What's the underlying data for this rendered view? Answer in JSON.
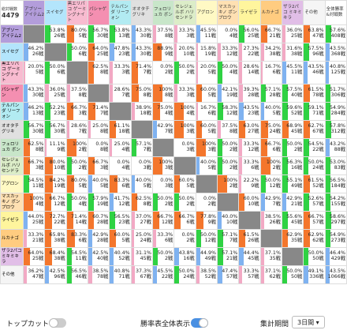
{
  "header": {
    "total_label": "総対戦数",
    "total": "4479"
  },
  "columns": [
    {
      "label": "アブソーアイテム2",
      "color": "#b39ddb"
    },
    {
      "label": "スイセグ",
      "color": "#b3e5fc"
    },
    {
      "label": "黒エリパコ ゲーミングナイト",
      "color": "#f8bbd0"
    },
    {
      "label": "パシャゲン",
      "color": "#f48fb1"
    },
    {
      "label": "テルパンダ リーフォン",
      "color": "#b2ebf2"
    },
    {
      "label": "オオタチグリキ",
      "color": "#e0e0e0"
    },
    {
      "label": "フェロリュカ ボン",
      "color": "#c8e6c9"
    },
    {
      "label": "セレジェルボ ハリセンドラ",
      "color": "#dcedc8"
    },
    {
      "label": "アグロン",
      "color": "#fff9c4"
    },
    {
      "label": "マスカッキノ ポンプロウ",
      "color": "#ffe0b2"
    },
    {
      "label": "ライゼラ",
      "color": "#fff59d"
    },
    {
      "label": "ルカナゴ",
      "color": "#ffcc80"
    },
    {
      "label": "ザラ2パコ ミキミキラ",
      "color": "#e1bee7"
    },
    {
      "label": "その他",
      "color": "#f5f5f5"
    },
    {
      "label": "全体勝率&対戦数",
      "color": "#ffffff"
    }
  ],
  "rows": [
    {
      "label": "アブソーアイテム2",
      "cells": [
        null,
        [
          "53.8%",
          "26戦"
        ],
        [
          "80.0%",
          "5戦"
        ],
        [
          "56.7%",
          "30戦"
        ],
        [
          "53.8%",
          "13戦"
        ],
        [
          "43.3%",
          "30戦"
        ],
        [
          "37.5%",
          "8戦"
        ],
        [
          "33.3%",
          "3戦"
        ],
        [
          "45.5%",
          "11戦"
        ],
        [
          "0.0%",
          "4戦"
        ],
        [
          "56.0%",
          "25戦"
        ],
        [
          "66.7%",
          "21戦"
        ],
        [
          "36.0%",
          "25戦"
        ],
        [
          "63.8%",
          "47戦"
        ],
        [
          "57.6%",
          "408戦"
        ]
      ]
    },
    {
      "label": "スイセグ",
      "cells": [
        [
          "46.2%",
          "26戦"
        ],
        null,
        [
          "50.0%",
          "6戦"
        ],
        [
          "64.0%",
          "25戦"
        ],
        [
          "47.8%",
          "23戦"
        ],
        [
          "43.3%",
          "30戦"
        ],
        [
          "88.9%",
          "9戦"
        ],
        [
          "20.0%",
          "10戦"
        ],
        [
          "15.8%",
          "19戦"
        ],
        [
          "33.3%",
          "12戦"
        ],
        [
          "27.3%",
          "22戦"
        ],
        [
          "34.2%",
          "38戦"
        ],
        [
          "31.6%",
          "38戦"
        ],
        [
          "57.5%",
          "96戦"
        ],
        [
          "43.5%",
          "368戦"
        ]
      ]
    },
    {
      "label": "黒エリパコ ゲーミングナイト",
      "cells": [
        [
          "20.0%",
          "5戦"
        ],
        [
          "50.0%",
          "6戦"
        ],
        null,
        [
          "62.5%",
          "8戦"
        ],
        [
          "33.3%",
          "3戦"
        ],
        [
          "71.4%",
          "7戦"
        ],
        [
          "0.0%",
          "2戦"
        ],
        [
          "50.0%",
          "2戦"
        ],
        [
          "20.0%",
          "5戦"
        ],
        [
          "50.0%",
          "4戦"
        ],
        [
          "28.6%",
          "14戦"
        ],
        [
          "16.7%",
          "6戦"
        ],
        [
          "45.5%",
          "11戦"
        ],
        [
          "43.5%",
          "46戦"
        ],
        [
          "40.8%",
          "125戦"
        ]
      ]
    },
    {
      "label": "パシャゲン",
      "cells": [
        [
          "43.3%",
          "30戦"
        ],
        [
          "36.0%",
          "25戦"
        ],
        [
          "37.5%",
          "8戦"
        ],
        null,
        [
          "28.6%",
          "7戦"
        ],
        [
          "75.0%",
          "8戦"
        ],
        [
          "100%",
          "8戦"
        ],
        [
          "33.3%",
          "3戦"
        ],
        [
          "60.0%",
          "5戦"
        ],
        [
          "42.1%",
          "19戦"
        ],
        [
          "39.3%",
          "28戦"
        ],
        [
          "57.1%",
          "28戦"
        ],
        [
          "57.5%",
          "40戦"
        ],
        [
          "61.5%",
          "78戦"
        ],
        [
          "51.7%",
          "306戦"
        ]
      ]
    },
    {
      "label": "テルパンダ リーフォン",
      "cells": [
        [
          "46.2%",
          "13戦"
        ],
        [
          "52.2%",
          "23戦"
        ],
        [
          "66.7%",
          "3戦"
        ],
        [
          "71.4%",
          "7戦"
        ],
        null,
        [
          "38.9%",
          "18戦"
        ],
        [
          "75.0%",
          "4戦"
        ],
        [
          "100%",
          "4戦"
        ],
        [
          "16.7%",
          "6戦"
        ],
        [
          "58.3%",
          "12戦"
        ],
        [
          "43.5%",
          "23戦"
        ],
        [
          "40.0%",
          "5戦"
        ],
        [
          "59.6%",
          "52戦"
        ],
        [
          "59.1%",
          "71戦"
        ],
        [
          "54.9%",
          "284戦"
        ]
      ]
    },
    {
      "label": "オオタチグリキ",
      "cells": [
        [
          "56.7%",
          "30戦"
        ],
        [
          "56.7%",
          "30戦"
        ],
        [
          "28.6%",
          "7戦"
        ],
        [
          "25.0%",
          "8戦"
        ],
        [
          "61.1%",
          "18戦"
        ],
        null,
        [
          "42.9%",
          "7戦"
        ],
        [
          "100%",
          "3戦"
        ],
        [
          "60.0%",
          "5戦"
        ],
        [
          "37.5%",
          "8戦"
        ],
        [
          "63.0%",
          "27戦"
        ],
        [
          "75.0%",
          "24戦"
        ],
        [
          "68.9%",
          "45戦"
        ],
        [
          "62.7%",
          "67戦"
        ],
        [
          "57.8%",
          "312戦"
        ]
      ]
    },
    {
      "label": "フェロリュカ ボン",
      "cells": [
        [
          "62.5%",
          "8戦"
        ],
        [
          "11.1%",
          "9戦"
        ],
        [
          "100%",
          "2戦"
        ],
        [
          "0.0%",
          "8戦"
        ],
        [
          "25.0%",
          "4戦"
        ],
        [
          "57.1%",
          "7戦"
        ],
        null,
        [
          "0.0%",
          "3戦"
        ],
        [
          "100%",
          "3戦"
        ],
        [
          "50.0%",
          "2戦"
        ],
        [
          "33.3%",
          "12戦"
        ],
        [
          "66.7%",
          "6戦"
        ],
        [
          "50.0%",
          "2戦"
        ],
        [
          "54.5%",
          "22戦"
        ],
        [
          "43.2%",
          "88戦"
        ]
      ]
    },
    {
      "label": "セレジェルボ ハリセンドラ",
      "cells": [
        [
          "66.7%",
          "3戦"
        ],
        [
          "80.0%",
          "10戦"
        ],
        [
          "50.0%",
          "2戦"
        ],
        [
          "66.7%",
          "3戦"
        ],
        [
          "0.0%",
          "4戦"
        ],
        [
          "0.0%",
          "3戦"
        ],
        [
          "100%",
          "3戦"
        ],
        null,
        [
          "40.0%",
          "5戦"
        ],
        [
          "50.0%",
          "2戦"
        ],
        [
          "33.3%",
          "6戦"
        ],
        [
          "100%",
          "2戦"
        ],
        [
          "56.3%",
          "16戦"
        ],
        [
          "50.0%",
          "24戦"
        ],
        [
          "53.0%",
          "83戦"
        ]
      ]
    },
    {
      "label": "アグロン",
      "cells": [
        [
          "54.5%",
          "11戦"
        ],
        [
          "84.2%",
          "19戦"
        ],
        [
          "80.0%",
          "5戦"
        ],
        [
          "40.0%",
          "5戦"
        ],
        [
          "83.3%",
          "6戦"
        ],
        [
          "40.0%",
          "5戦"
        ],
        [
          "0.0%",
          "3戦"
        ],
        [
          "60.0%",
          "5戦"
        ],
        null,
        [
          "100%",
          "2戦"
        ],
        [
          "22.2%",
          "9戦"
        ],
        [
          "50.0%",
          "12戦"
        ],
        [
          "55.1%",
          "49戦"
        ],
        [
          "61.5%",
          "52戦"
        ],
        [
          "56.5%",
          "184戦"
        ]
      ]
    },
    {
      "label": "マスカッキノ ポンプロウ",
      "cells": [
        [
          "100%",
          "4戦"
        ],
        [
          "66.7%",
          "12戦"
        ],
        [
          "50.0%",
          "4戦"
        ],
        [
          "57.9%",
          "19戦"
        ],
        [
          "41.7%",
          "12戦"
        ],
        [
          "62.5%",
          "8戦"
        ],
        [
          "50.0%",
          "2戦"
        ],
        [
          "50.0%",
          "2戦"
        ],
        [
          "0.0%",
          "2戦"
        ],
        null,
        [
          "60.0%",
          "10戦"
        ],
        [
          "42.9%",
          "7戦"
        ],
        [
          "42.9%",
          "21戦"
        ],
        [
          "52.6%",
          "57戦"
        ],
        [
          "54.2%",
          "155戦"
        ]
      ]
    },
    {
      "label": "ライゼラ",
      "cells": [
        [
          "44.0%",
          "25戦"
        ],
        [
          "72.7%",
          "22戦"
        ],
        [
          "71.4%",
          "14戦"
        ],
        [
          "60.7%",
          "28戦"
        ],
        [
          "56.5%",
          "23戦"
        ],
        [
          "37.0%",
          "27戦"
        ],
        [
          "66.7%",
          "12戦"
        ],
        [
          "66.7%",
          "6戦"
        ],
        [
          "77.8%",
          "9戦"
        ],
        [
          "40.0%",
          "10戦"
        ],
        null,
        [
          "38.5%",
          "26戦"
        ],
        [
          "55.6%",
          "45戦"
        ],
        [
          "66.7%",
          "57戦"
        ],
        [
          "58.6%",
          "297戦"
        ]
      ]
    },
    {
      "label": "ルカナゴ",
      "cells": [
        [
          "33.3%",
          "21戦"
        ],
        [
          "65.8%",
          "38戦"
        ],
        [
          "83.3%",
          "6戦"
        ],
        [
          "42.9%",
          "28戦"
        ],
        [
          "60.0%",
          "5戦"
        ],
        [
          "25.0%",
          "24戦"
        ],
        [
          "33.3%",
          "6戦"
        ],
        [
          "0.0%",
          "2戦"
        ],
        [
          "50.0%",
          "12戦"
        ],
        [
          "57.1%",
          "7戦"
        ],
        [
          "61.5%",
          "26戦"
        ],
        null,
        [
          "62.9%",
          "35戦"
        ],
        [
          "62.9%",
          "62戦"
        ],
        [
          "54.9%",
          "273戦"
        ]
      ]
    },
    {
      "label": "ザラ2パコ ミキミキラ",
      "cells": [
        [
          "64.0%",
          "25戦"
        ],
        [
          "68.4%",
          "38戦"
        ],
        [
          "54.5%",
          "11戦"
        ],
        [
          "42.5%",
          "40戦"
        ],
        [
          "40.4%",
          "52戦"
        ],
        [
          "31.1%",
          "45戦"
        ],
        [
          "50.0%",
          "2戦"
        ],
        [
          "43.8%",
          "16戦"
        ],
        [
          "44.9%",
          "49戦"
        ],
        [
          "57.1%",
          "21戦"
        ],
        [
          "44.4%",
          "45戦"
        ],
        [
          "37.1%",
          "35戦"
        ],
        null,
        [
          "50.0%",
          "50戦"
        ],
        [
          "46.4%",
          "429戦"
        ]
      ]
    },
    {
      "label": "その他",
      "cells": [
        [
          "36.2%",
          "47戦"
        ],
        [
          "42.5%",
          "96戦"
        ],
        [
          "56.5%",
          "46戦"
        ],
        [
          "38.5%",
          "78戦"
        ],
        [
          "40.8%",
          "71戦"
        ],
        [
          "37.3%",
          "67戦"
        ],
        [
          "45.5%",
          "22戦"
        ],
        [
          "50.0%",
          "24戦"
        ],
        [
          "38.5%",
          "52戦"
        ],
        [
          "47.4%",
          "57戦"
        ],
        [
          "33.3%",
          "57戦"
        ],
        [
          "37.1%",
          "62戦"
        ],
        [
          "50.0%",
          "50戦"
        ],
        [
          "49.1%",
          "336戦"
        ],
        [
          "43.5%",
          "1066戦"
        ]
      ]
    }
  ],
  "footer": {
    "topcut": "トップカット",
    "show_all": "勝率表全体表示",
    "period_label": "集計期間",
    "period": "3日間"
  }
}
